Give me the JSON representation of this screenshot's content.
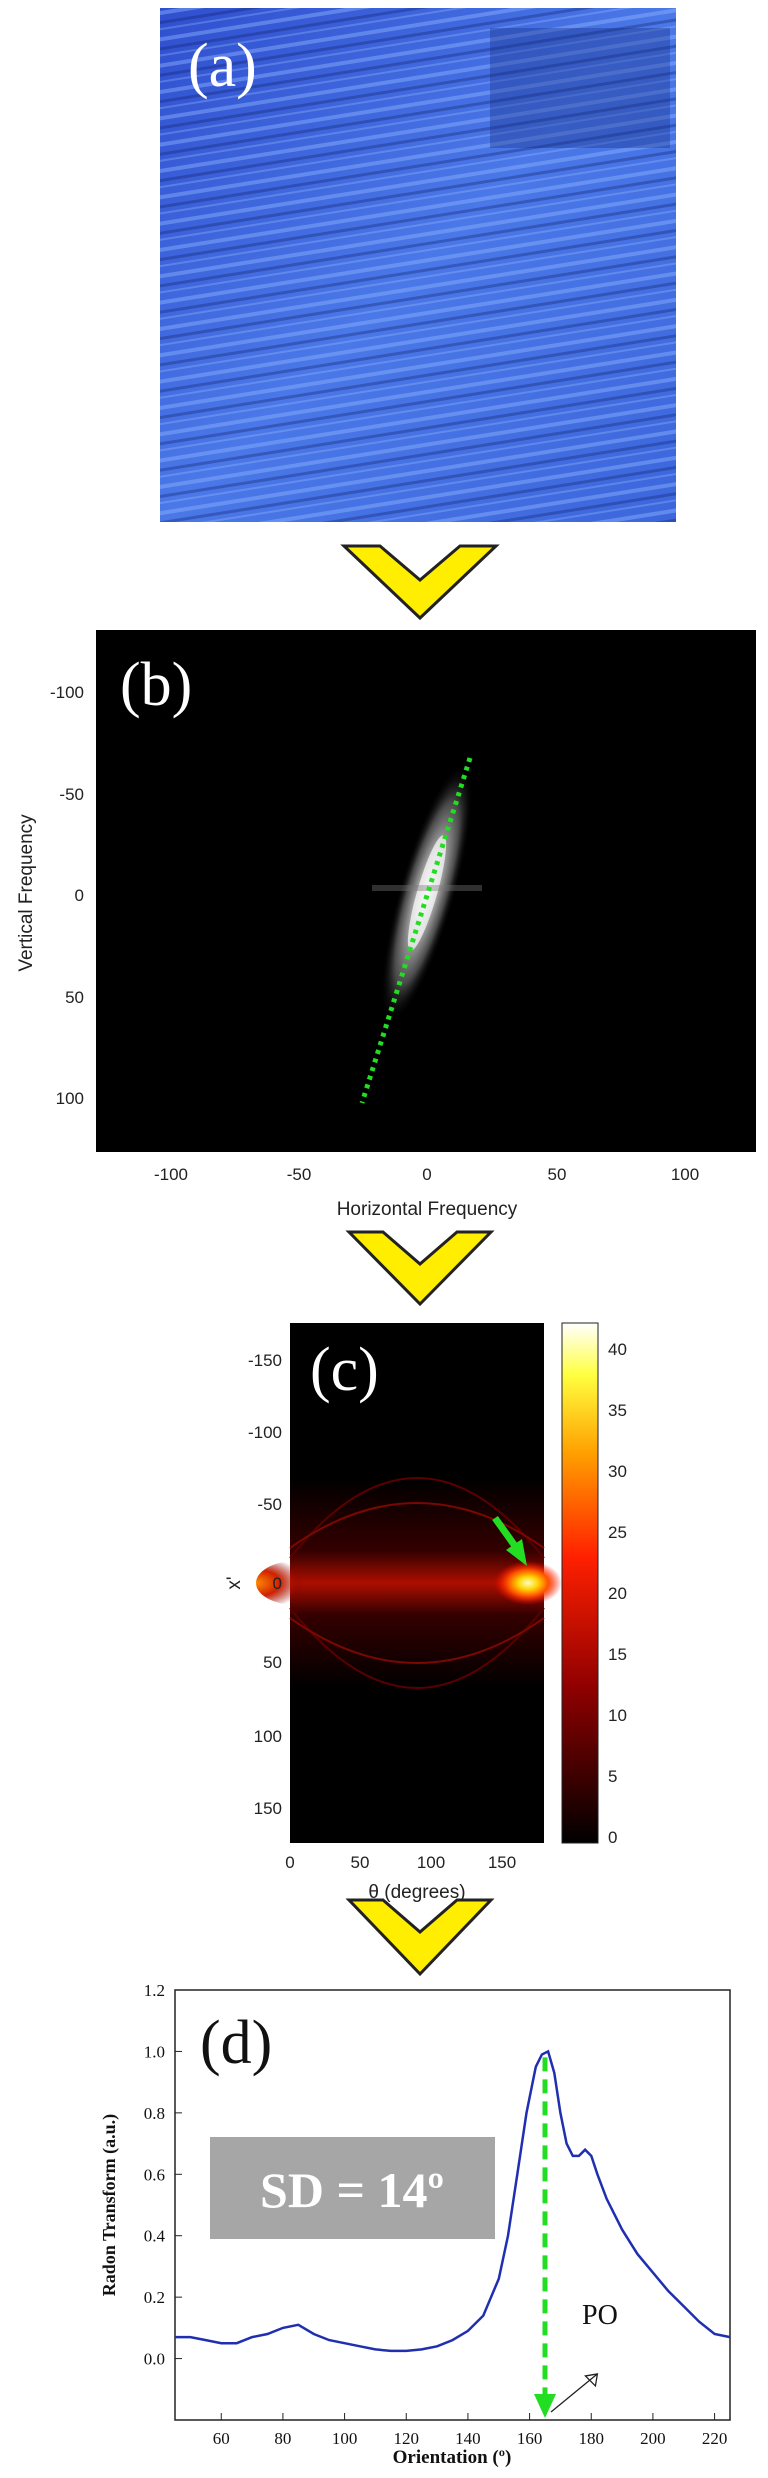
{
  "panel_a": {
    "label": "(a)"
  },
  "panel_b": {
    "label": "(b)",
    "xlabel": "Horizontal Frequency",
    "ylabel": "Vertical Frequency",
    "xticks": [
      "-100",
      "-50",
      "0",
      "50",
      "100"
    ],
    "yticks": [
      "-100",
      "-50",
      "0",
      "50",
      "100"
    ]
  },
  "panel_c": {
    "label": "(c)",
    "xlabel": "θ (degrees)",
    "ylabel": "x'",
    "xticks": [
      "0",
      "50",
      "100",
      "150"
    ],
    "yticks": [
      "-150",
      "-100",
      "-50",
      "0",
      "50",
      "100",
      "150"
    ],
    "colorbar_ticks": [
      "40",
      "35",
      "30",
      "25",
      "20",
      "15",
      "10",
      "5",
      "0"
    ]
  },
  "panel_d": {
    "label": "(d)",
    "sd_label": "SD = 14º",
    "po_label": "PO"
  },
  "colors": {
    "arrow_yellow": "#ffee00",
    "arrow_outline": "#222222",
    "green_marker": "#22dd22",
    "curve_blue": "#1f2fb0",
    "sd_box": "#a6a6a6"
  },
  "chart_data": {
    "type": "line",
    "title": "",
    "xlabel": "Orientation (º)",
    "ylabel": "Radon Transform (a.u.)",
    "xlim": [
      45,
      225
    ],
    "ylim": [
      -0.2,
      1.2
    ],
    "xticks": [
      60,
      80,
      100,
      120,
      140,
      160,
      180,
      200,
      220
    ],
    "yticks": [
      0.0,
      0.2,
      0.4,
      0.6,
      0.8,
      1.0,
      1.2
    ],
    "grid": false,
    "series": [
      {
        "x": [
          45,
          50,
          55,
          60,
          65,
          70,
          75,
          80,
          85,
          90,
          95,
          100,
          105,
          110,
          115,
          120,
          125,
          130,
          135,
          140,
          145,
          150,
          153,
          156,
          159,
          162,
          164,
          166,
          168,
          170,
          172,
          174,
          176,
          178,
          180,
          182,
          185,
          190,
          195,
          200,
          205,
          210,
          215,
          220,
          225
        ],
        "y": [
          0.07,
          0.07,
          0.06,
          0.05,
          0.05,
          0.07,
          0.08,
          0.1,
          0.11,
          0.08,
          0.06,
          0.05,
          0.04,
          0.03,
          0.025,
          0.025,
          0.03,
          0.04,
          0.06,
          0.09,
          0.14,
          0.26,
          0.4,
          0.6,
          0.8,
          0.95,
          0.99,
          1.0,
          0.93,
          0.8,
          0.7,
          0.66,
          0.66,
          0.68,
          0.66,
          0.6,
          0.52,
          0.42,
          0.34,
          0.28,
          0.22,
          0.17,
          0.12,
          0.08,
          0.07
        ]
      }
    ],
    "peak_orientation": 165
  }
}
